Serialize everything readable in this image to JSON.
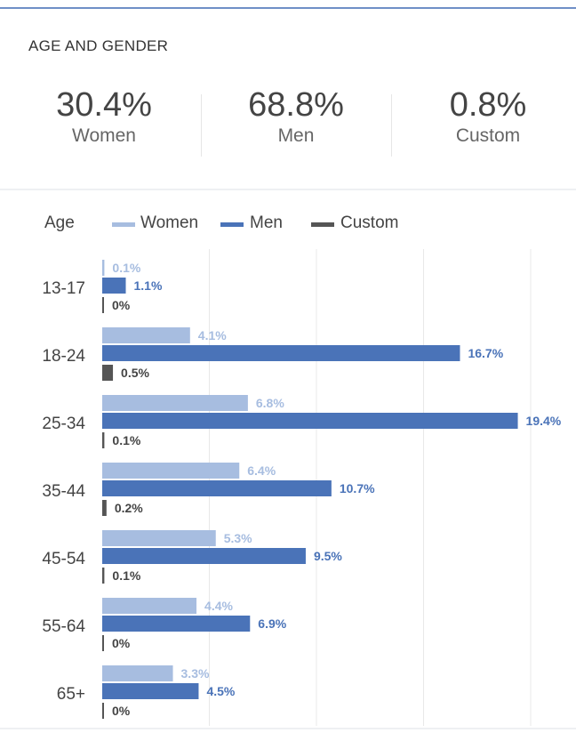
{
  "section_title": "AGE AND GENDER",
  "summary": [
    {
      "pct": "30.4%",
      "label": "Women"
    },
    {
      "pct": "68.8%",
      "label": "Men"
    },
    {
      "pct": "0.8%",
      "label": "Custom"
    }
  ],
  "legend": {
    "axis_label": "Age",
    "women": "Women",
    "men": "Men",
    "custom": "Custom"
  },
  "colors": {
    "women": "#a7bde0",
    "men": "#4a73b8",
    "custom": "#555555",
    "grid": "#e8e8e8"
  },
  "chart_data": {
    "type": "bar",
    "orientation": "horizontal",
    "categories": [
      "13-17",
      "18-24",
      "25-34",
      "35-44",
      "45-54",
      "55-64",
      "65+"
    ],
    "series": [
      {
        "name": "Women",
        "values": [
          0.1,
          4.1,
          6.8,
          6.4,
          5.3,
          4.4,
          3.3
        ],
        "labels": [
          "0.1%",
          "4.1%",
          "6.8%",
          "6.4%",
          "5.3%",
          "4.4%",
          "3.3%"
        ]
      },
      {
        "name": "Men",
        "values": [
          1.1,
          16.7,
          19.4,
          10.7,
          9.5,
          6.9,
          4.5
        ],
        "labels": [
          "1.1%",
          "16.7%",
          "19.4%",
          "10.7%",
          "9.5%",
          "6.9%",
          "4.5%"
        ]
      },
      {
        "name": "Custom",
        "values": [
          0,
          0.5,
          0.1,
          0.2,
          0.1,
          0,
          0
        ],
        "labels": [
          "0%",
          "0.5%",
          "0.1%",
          "0.2%",
          "0.1%",
          "0%",
          "0%"
        ]
      }
    ],
    "xlim": [
      0,
      20
    ],
    "grid": true,
    "legend_position": "top-left"
  }
}
